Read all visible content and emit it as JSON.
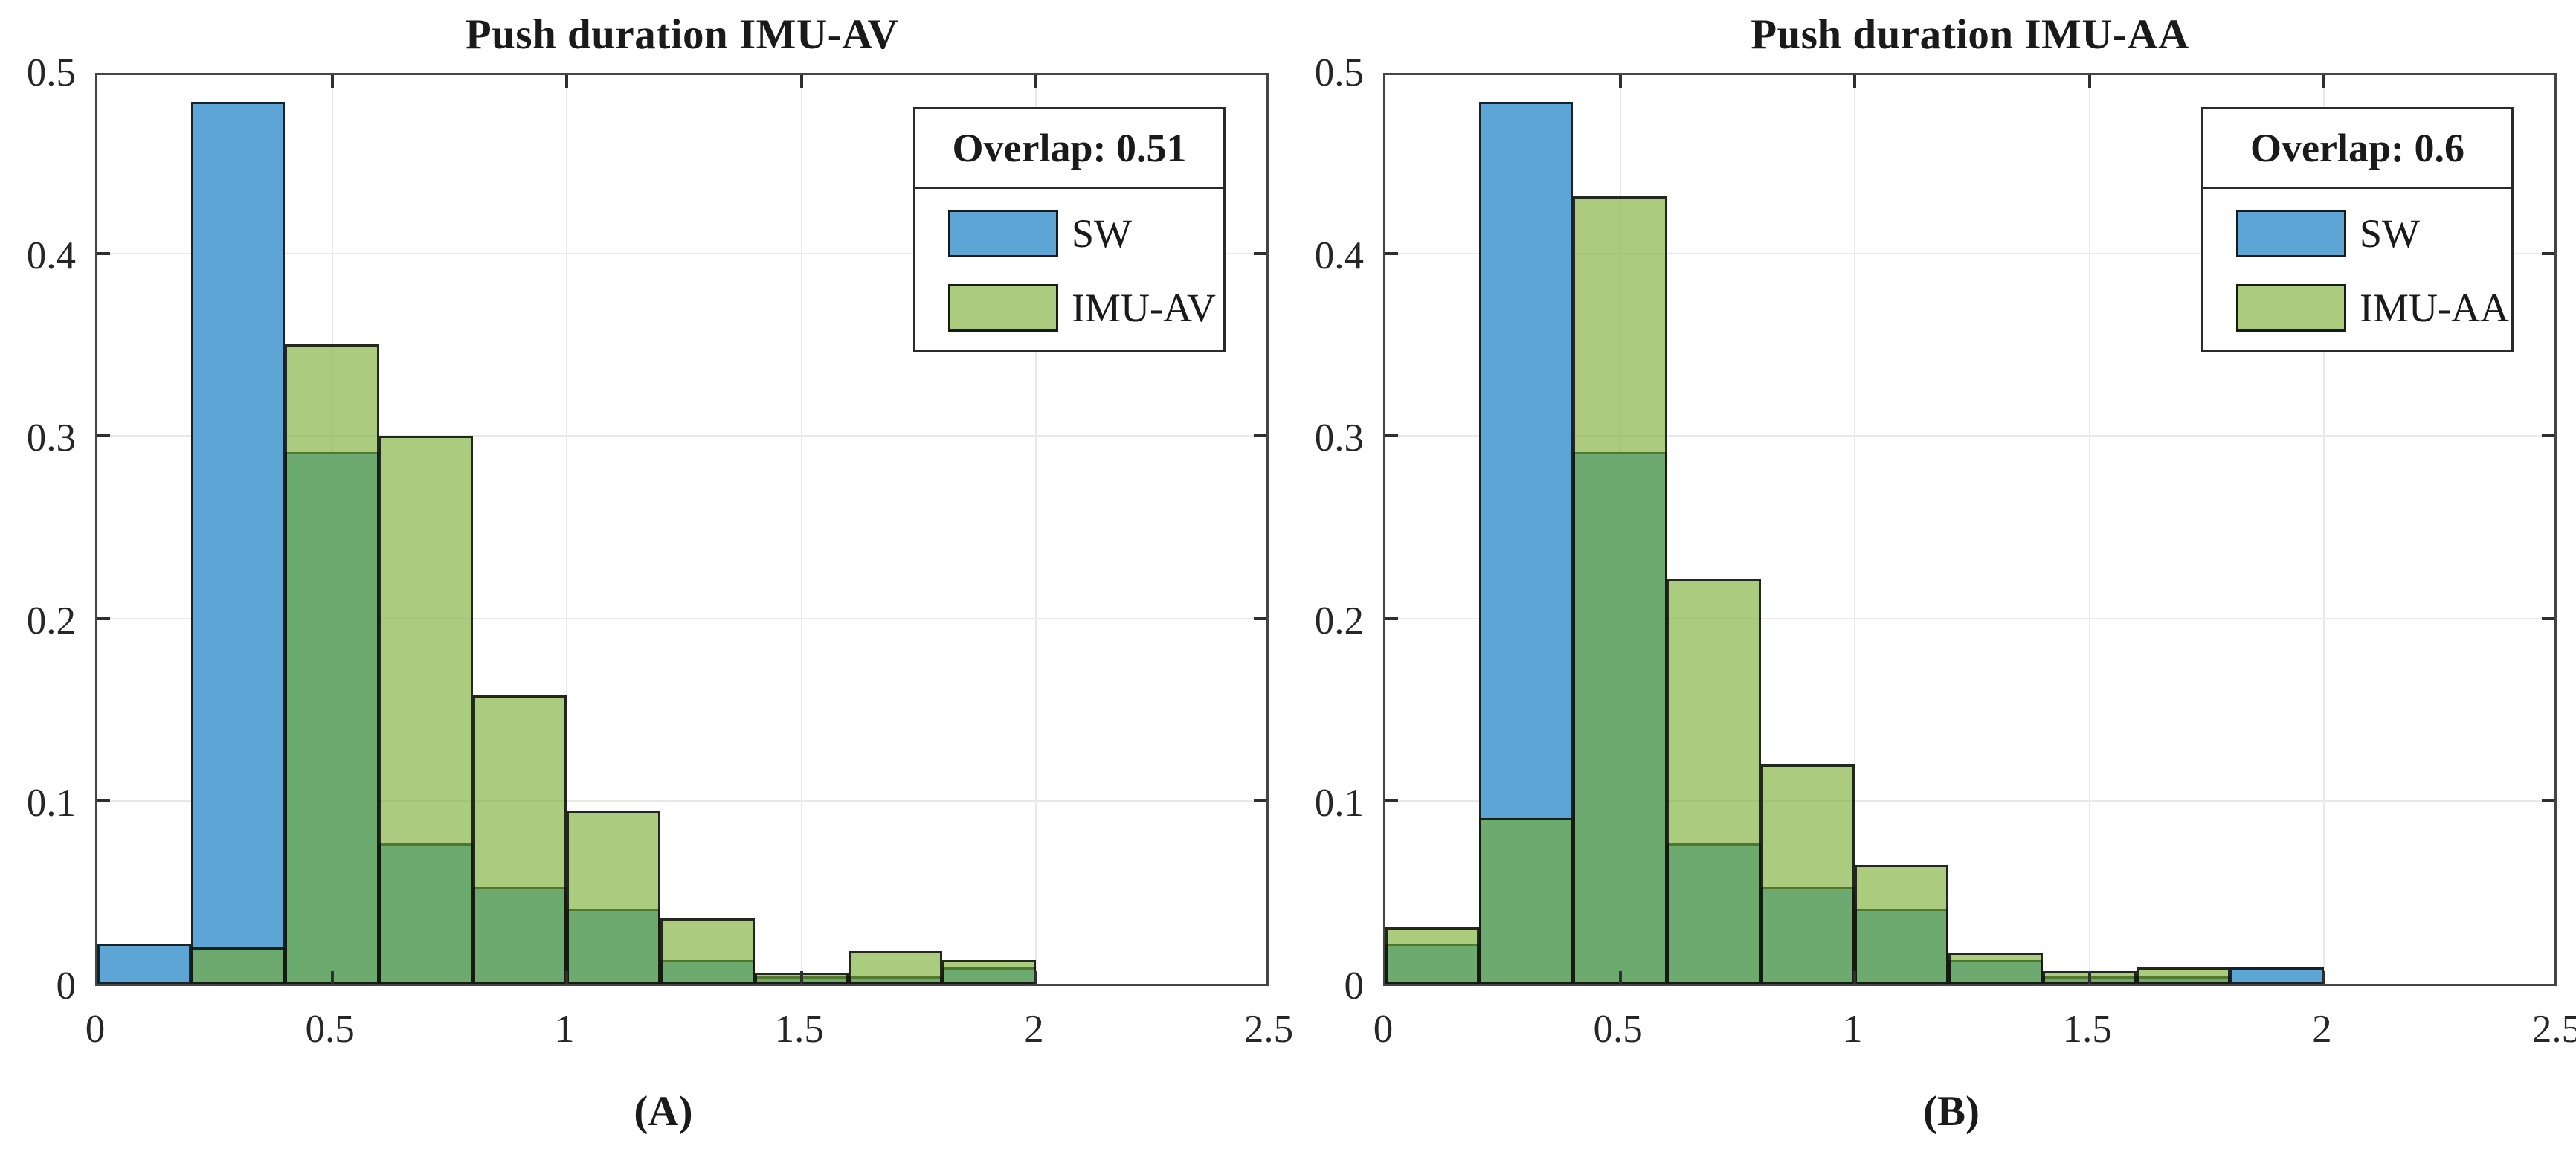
{
  "figure": {
    "x_tick_labels": [
      "0",
      "0.5",
      "1",
      "1.5",
      "2",
      "2.5"
    ],
    "x_tick_values": [
      0,
      0.5,
      1,
      1.5,
      2,
      2.5
    ],
    "y_tick_labels": [
      "0",
      "0.1",
      "0.2",
      "0.3",
      "0.4",
      "0.5"
    ],
    "y_tick_values": [
      0,
      0.1,
      0.2,
      0.3,
      0.4,
      0.5
    ],
    "colors": {
      "sw_blue": "#5CA5D5",
      "imu_green_solid": "#ABCC7F",
      "imu_green_rgba": "rgba(119,172,48,0.62)",
      "overlap_green": "#6BA872",
      "bar_edge": "rgba(10,10,10,0.85)",
      "axis_spine": "#454545",
      "gridline": "#e9e9e9",
      "tick_label": "#262626",
      "text": "#1a1a1a"
    }
  },
  "chart_data": [
    {
      "type": "bar",
      "subtype": "overlaid-histogram",
      "title": "Push duration IMU-AV",
      "panel_label": "(A)",
      "overlap_label": "Overlap: 0.51",
      "overlap_value": 0.51,
      "xlim": [
        0,
        2.5
      ],
      "ylim": [
        0,
        0.5
      ],
      "grid": true,
      "legend_position": "upper-right",
      "bin_edges": [
        0,
        0.2,
        0.4,
        0.6,
        0.8,
        1.0,
        1.2,
        1.4,
        1.6,
        1.8,
        2.0
      ],
      "categories": [
        "0-0.2",
        "0.2-0.4",
        "0.4-0.6",
        "0.6-0.8",
        "0.8-1.0",
        "1.0-1.2",
        "1.2-1.4",
        "1.4-1.6",
        "1.6-1.8",
        "1.8-2.0"
      ],
      "series": [
        {
          "name": "SW",
          "values": [
            0.022,
            0.483,
            0.291,
            0.077,
            0.053,
            0.041,
            0.013,
            0.004,
            0.004,
            0.009
          ]
        },
        {
          "name": "IMU-AV",
          "values": [
            0.0,
            0.02,
            0.35,
            0.3,
            0.158,
            0.095,
            0.036,
            0.006,
            0.018,
            0.013
          ]
        }
      ]
    },
    {
      "type": "bar",
      "subtype": "overlaid-histogram",
      "title": "Push duration IMU-AA",
      "panel_label": "(B)",
      "overlap_label": "Overlap: 0.6",
      "overlap_value": 0.6,
      "xlim": [
        0,
        2.5
      ],
      "ylim": [
        0,
        0.5
      ],
      "grid": true,
      "legend_position": "upper-right",
      "bin_edges": [
        0,
        0.2,
        0.4,
        0.6,
        0.8,
        1.0,
        1.2,
        1.4,
        1.6,
        1.8,
        2.0
      ],
      "categories": [
        "0-0.2",
        "0.2-0.4",
        "0.4-0.6",
        "0.6-0.8",
        "0.8-1.0",
        "1.0-1.2",
        "1.2-1.4",
        "1.4-1.6",
        "1.6-1.8",
        "1.8-2.0"
      ],
      "series": [
        {
          "name": "SW",
          "values": [
            0.022,
            0.483,
            0.291,
            0.077,
            0.053,
            0.041,
            0.013,
            0.004,
            0.004,
            0.009
          ]
        },
        {
          "name": "IMU-AA",
          "values": [
            0.031,
            0.091,
            0.431,
            0.222,
            0.12,
            0.065,
            0.017,
            0.007,
            0.009,
            0.0
          ]
        }
      ]
    }
  ]
}
